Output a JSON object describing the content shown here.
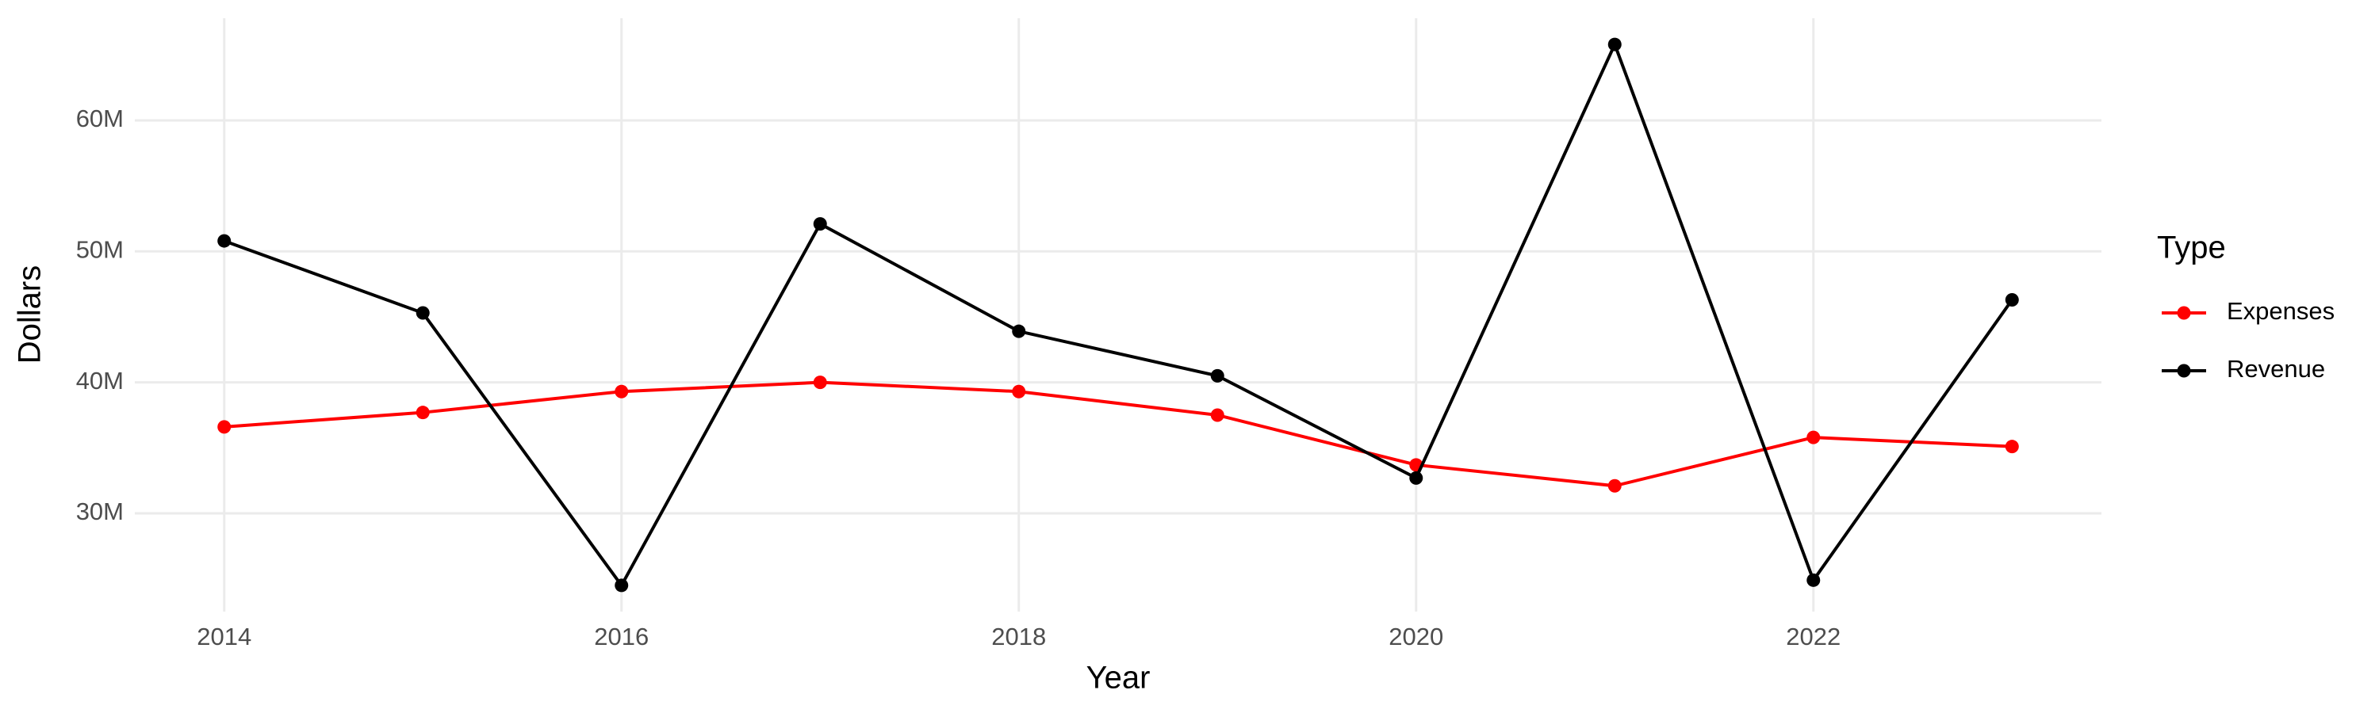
{
  "chart_data": {
    "type": "line",
    "x_label": "Year",
    "y_label": "Dollars",
    "legend_title": "Type",
    "x": [
      2014,
      2015,
      2016,
      2017,
      2018,
      2019,
      2020,
      2021,
      2022,
      2023
    ],
    "series": [
      {
        "name": "Expenses",
        "color": "#ff0000",
        "values": [
          36600000,
          37700000,
          39300000,
          40000000,
          39300000,
          37500000,
          33700000,
          32100000,
          35800000,
          35100000
        ]
      },
      {
        "name": "Revenue",
        "color": "#000000",
        "values": [
          50800000,
          45300000,
          24500000,
          52100000,
          43900000,
          40500000,
          32700000,
          65800000,
          24900000,
          46300000
        ]
      }
    ],
    "xlim": [
      2013.55,
      2023.45
    ],
    "xticks": [
      2014,
      2016,
      2018,
      2020,
      2022
    ],
    "ylim": [
      22500000,
      67800000
    ],
    "yticks": [
      {
        "value": 30000000,
        "label": "30M"
      },
      {
        "value": 40000000,
        "label": "40M"
      },
      {
        "value": 50000000,
        "label": "50M"
      },
      {
        "value": 60000000,
        "label": "60M"
      }
    ],
    "grid": true,
    "legend": "right"
  }
}
